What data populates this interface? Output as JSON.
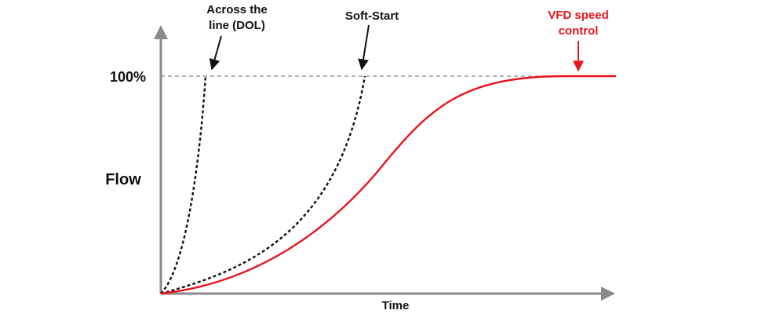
{
  "labels": {
    "y_axis": "Flow",
    "x_axis": "Time",
    "full_level": "100%",
    "dol_line1": "Across the",
    "dol_line2": "line (DOL)",
    "softstart": "Soft-Start",
    "vfd_line1": "VFD speed",
    "vfd_line2": "control"
  },
  "colors": {
    "axis": "#8a8a8a",
    "dashed_curve": "#111111",
    "vfd_curve": "#e8141b",
    "reference_line": "#9a9a9a",
    "text": "#111111",
    "vfd_text": "#e8141b"
  },
  "chart_data": {
    "type": "line",
    "x_axis_label": "Time",
    "y_axis_label": "Flow",
    "y_reference": "100%",
    "series": [
      {
        "name": "Across the line (DOL)",
        "style": "dashed",
        "color": "#111111",
        "shape": "very fast rise to 100%"
      },
      {
        "name": "Soft-Start",
        "style": "dashed",
        "color": "#111111",
        "shape": "gradual ramp to 100%"
      },
      {
        "name": "VFD speed control",
        "style": "solid",
        "color": "#e8141b",
        "shape": "smooth S-curve to 100%"
      }
    ]
  }
}
